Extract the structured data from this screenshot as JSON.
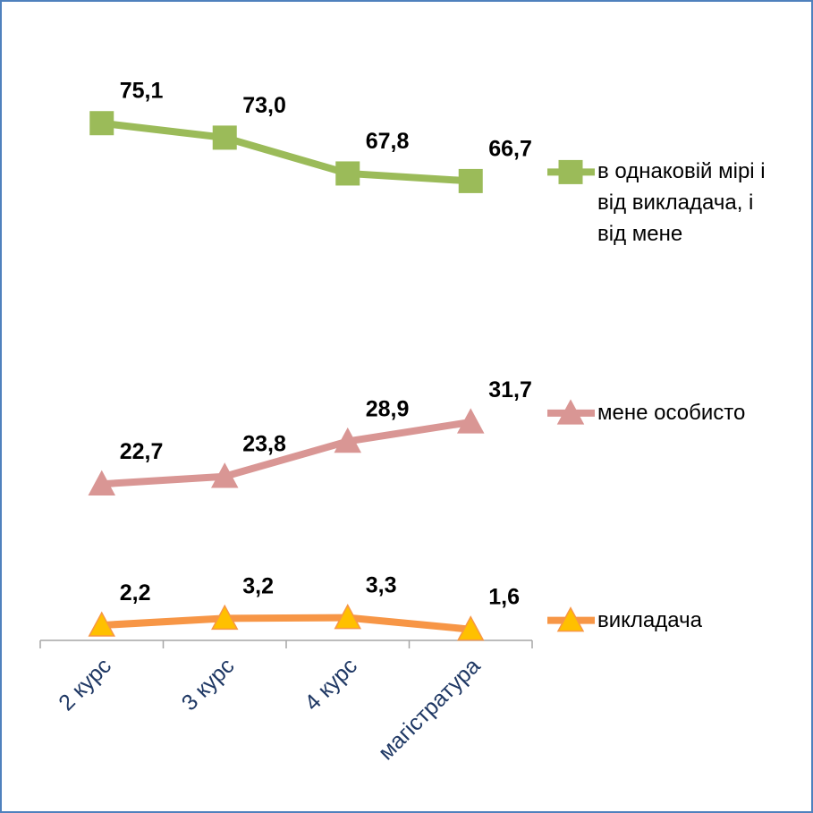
{
  "chart_data": {
    "type": "line",
    "categories": [
      "2 курс",
      "3 курс",
      "4 курс",
      "магістратура"
    ],
    "ylim": [
      0,
      90
    ],
    "series": [
      {
        "name": "в однаковій мірі і від викладача, і від мене",
        "color": "#9bbb59",
        "marker": "square",
        "values": [
          75.1,
          73.0,
          67.8,
          66.7
        ],
        "value_labels": [
          "75,1",
          "73,0",
          "67,8",
          "66,7"
        ]
      },
      {
        "name": "мене особисто",
        "color": "#d99694",
        "marker": "triangle",
        "values": [
          22.7,
          23.8,
          28.9,
          31.7
        ],
        "value_labels": [
          "22,7",
          "23,8",
          "28,9",
          "31,7"
        ]
      },
      {
        "name": "викладача",
        "color": "#f79646",
        "marker": "triangle",
        "marker_fill": "#ffc000",
        "values": [
          2.2,
          3.2,
          3.3,
          1.6
        ],
        "value_labels": [
          "2,2",
          "3,2",
          "3,3",
          "1,6"
        ]
      }
    ]
  }
}
